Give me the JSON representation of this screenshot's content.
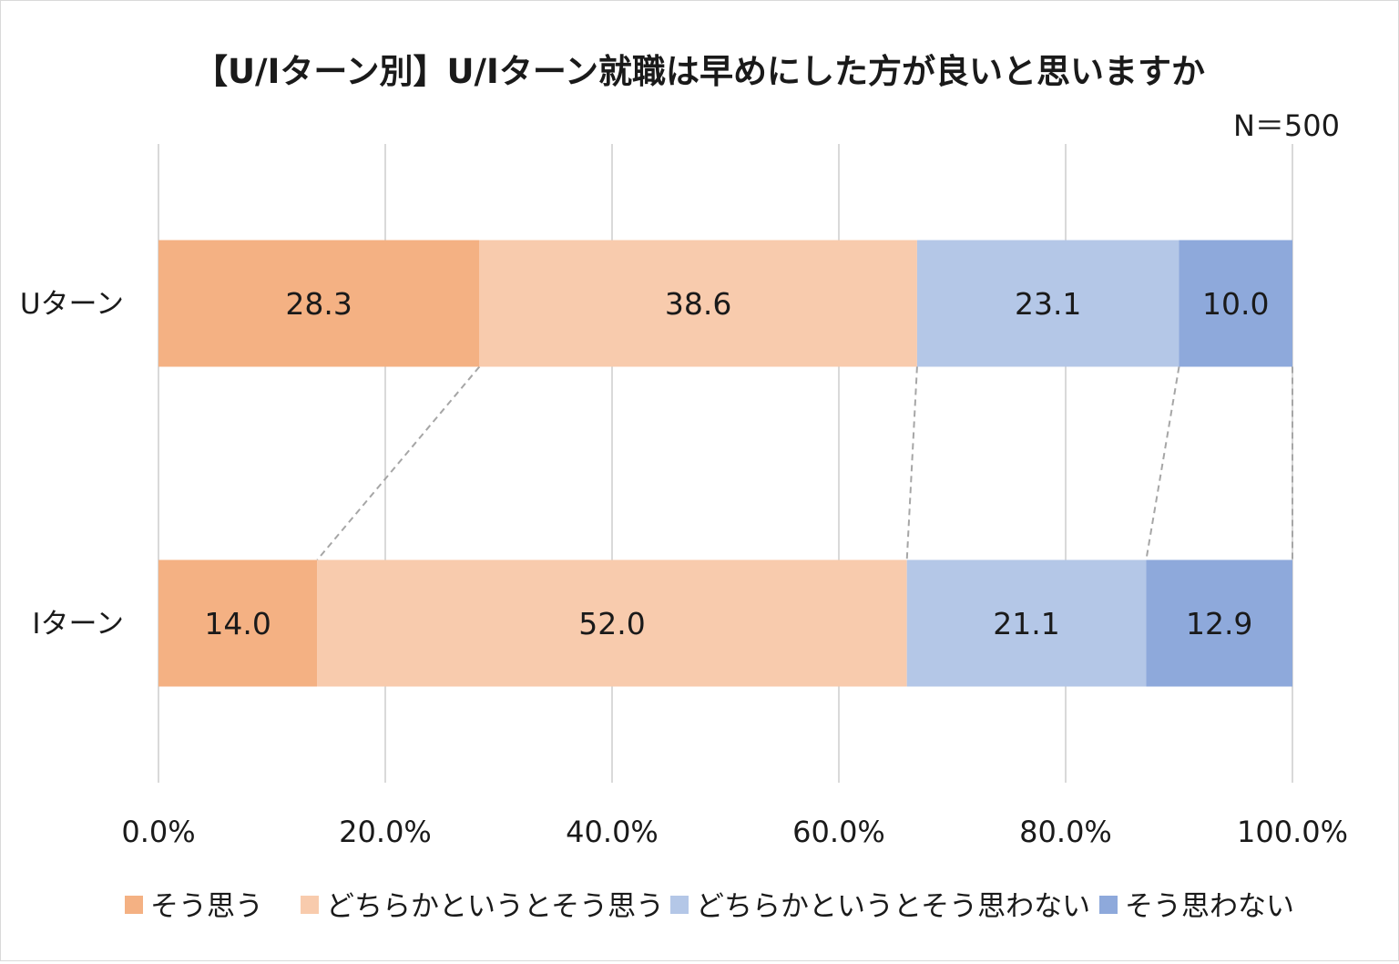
{
  "chart_data": {
    "type": "bar",
    "orientation": "horizontal",
    "stacked": true,
    "title": "【U/Iターン別】U/Iターン就職は早めにした方が良いと思いますか",
    "sample_size": "N＝500",
    "categories": [
      "Uターン",
      "Iターン"
    ],
    "series": [
      {
        "name": "そう思う",
        "values": [
          28.3,
          14.0
        ],
        "labels": [
          "28.3",
          "14.0"
        ],
        "color": "#F4B183"
      },
      {
        "name": "どちらかというとそう思う",
        "values": [
          38.6,
          52.0
        ],
        "labels": [
          "38.6",
          "52.0"
        ],
        "color": "#F8CBAD"
      },
      {
        "name": "どちらかというとそう思わない",
        "values": [
          23.1,
          21.1
        ],
        "labels": [
          "23.1",
          "21.1"
        ],
        "color": "#B4C7E7"
      },
      {
        "name": "そう思わない",
        "values": [
          10.0,
          12.9
        ],
        "labels": [
          "10.0",
          "12.9"
        ],
        "color": "#8EA9DB"
      }
    ],
    "xlim": [
      0,
      100
    ],
    "ticks": [
      0,
      20,
      40,
      60,
      80,
      100
    ],
    "tick_labels": [
      "0.0%",
      "20.0%",
      "40.0%",
      "60.0%",
      "80.0%",
      "100.0%"
    ],
    "grid": true,
    "series_connector_lines": true,
    "legend_position": "bottom"
  }
}
